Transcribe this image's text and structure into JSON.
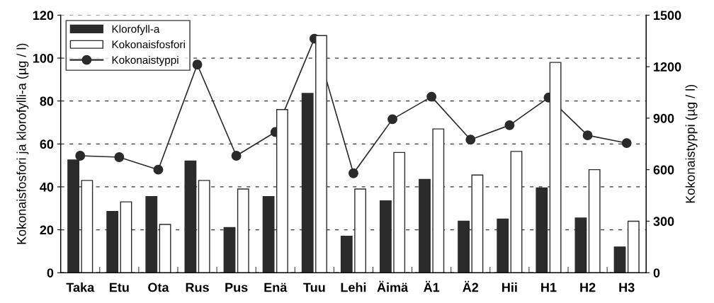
{
  "chart_data": {
    "type": "bar",
    "ylabel": "Kokonaisfosfori ja klorofylli-a (µg / l)",
    "y2label": "Kokonaistyppi (µg / l)",
    "categories": [
      "Taka",
      "Etu",
      "Ota",
      "Rus",
      "Pus",
      "Enä",
      "Tuu",
      "Lehi",
      "Äimä",
      "Ä1",
      "Ä2",
      "Hii",
      "H1",
      "H2",
      "H3"
    ],
    "series": [
      {
        "name": "Klorofyll-a",
        "color": "#2b2b2b",
        "values": [
          52.5,
          28.5,
          35.5,
          52,
          21,
          35.5,
          83.5,
          17,
          33.5,
          43.5,
          24,
          25,
          39.5,
          25.5,
          12
        ]
      },
      {
        "name": "Kokonaisfosfori",
        "color": "#ffffff",
        "values": [
          43,
          33,
          22.5,
          43,
          39,
          76,
          110.5,
          39,
          56,
          67,
          45.5,
          56.5,
          98,
          48,
          24
        ]
      },
      {
        "name": "Kokonaistyppi",
        "type": "line",
        "axis": "y2",
        "color": "#2b2b2b",
        "marker": "circle",
        "values": [
          681,
          673,
          600,
          1212,
          681,
          819,
          1363,
          579,
          894,
          1025,
          775,
          859,
          1020,
          800,
          755
        ]
      }
    ],
    "ylim": [
      0,
      120
    ],
    "yticks": [
      0,
      20,
      40,
      60,
      80,
      100,
      120
    ],
    "y2lim": [
      0,
      1500
    ],
    "y2ticks": [
      0,
      300,
      600,
      900,
      1200,
      1500
    ],
    "grid": "y",
    "legend": "top left"
  }
}
